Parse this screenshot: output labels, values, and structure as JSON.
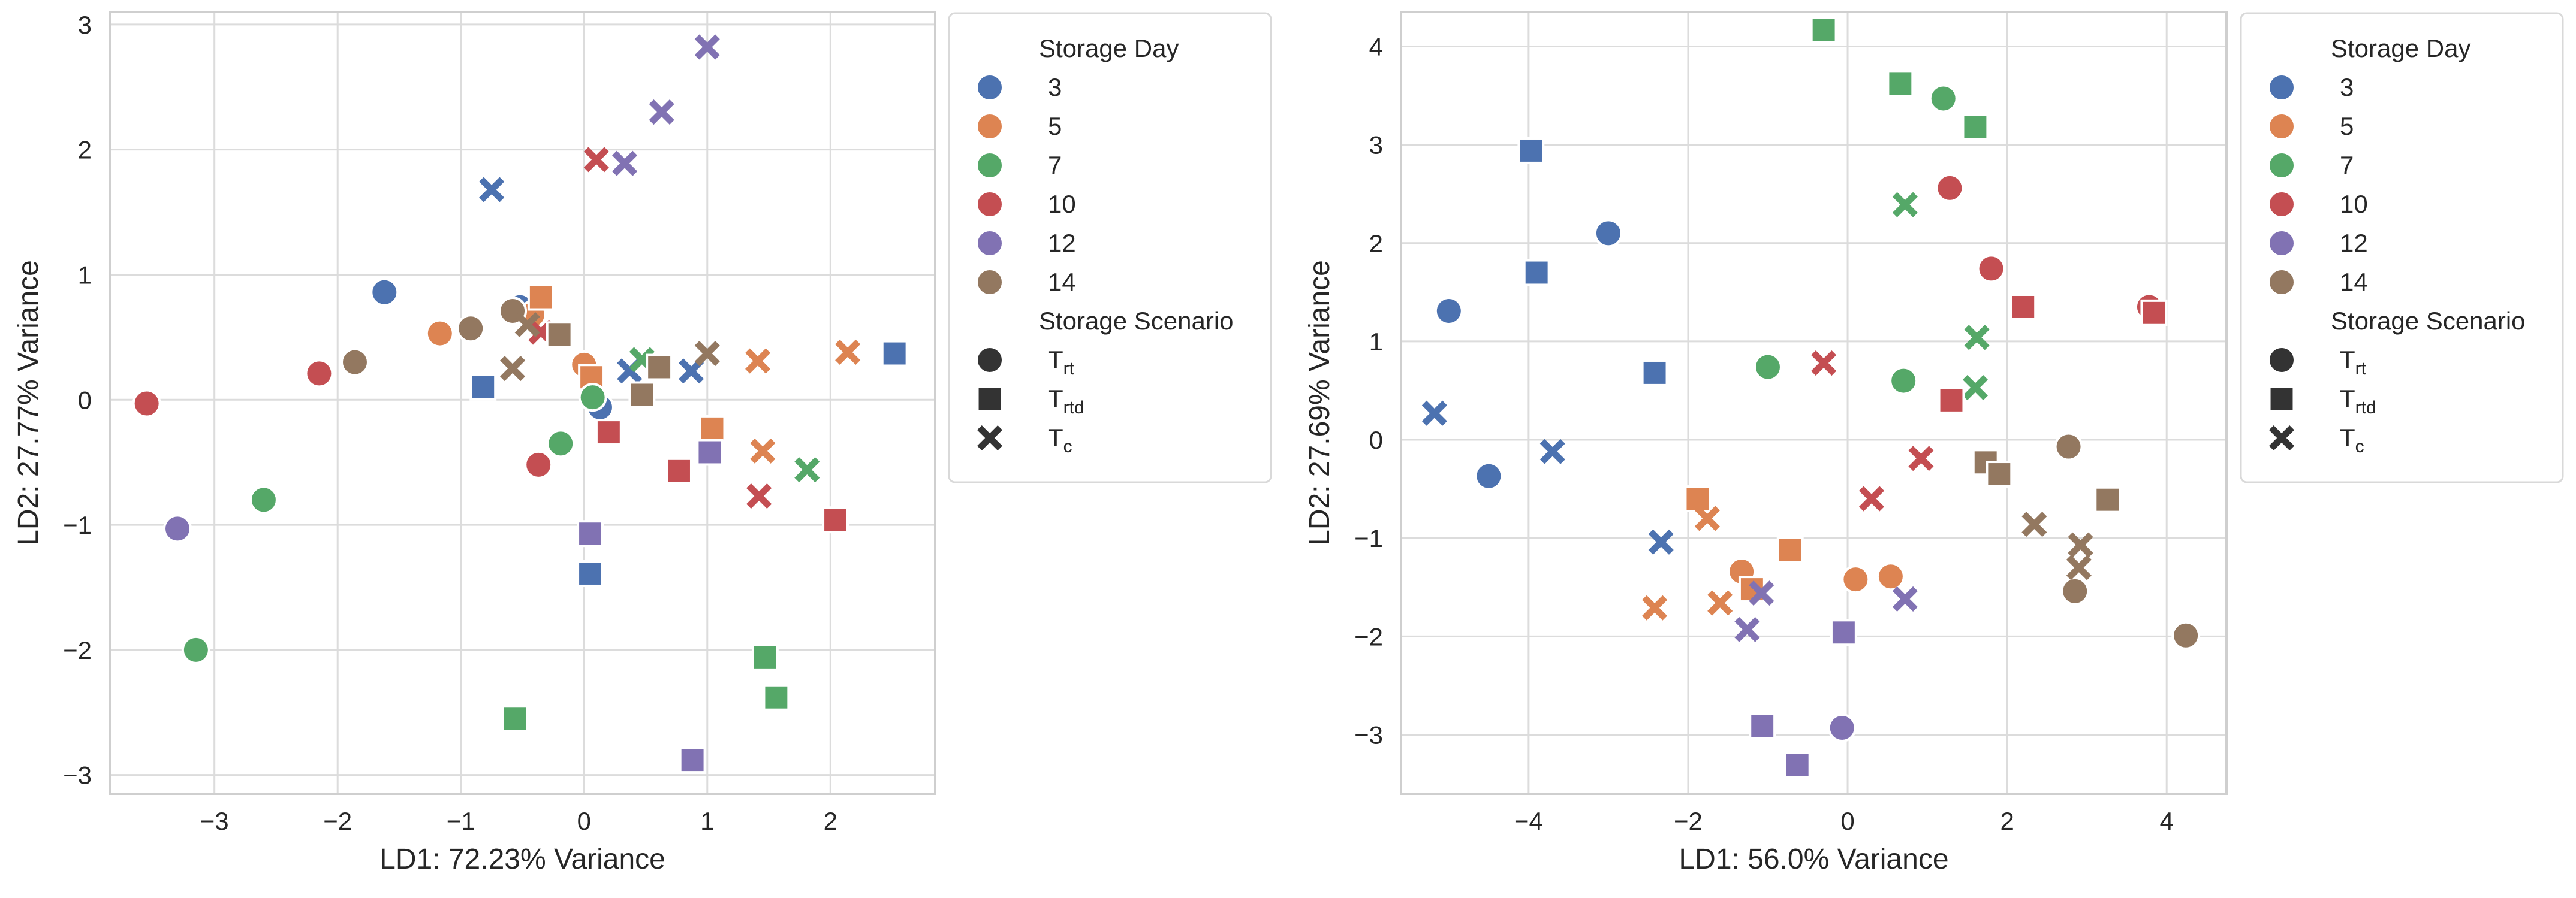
{
  "legend": {
    "hue_title": "Storage Day",
    "style_title": "Storage Scenario",
    "days": [
      "3",
      "5",
      "7",
      "10",
      "12",
      "14"
    ],
    "scenarios": [
      {
        "key": "circle",
        "main": "T",
        "sub": "rt"
      },
      {
        "key": "square",
        "main": "T",
        "sub": "rtd"
      },
      {
        "key": "x",
        "main": "T",
        "sub": "c"
      }
    ]
  },
  "colors": {
    "3": "#4c72b0",
    "5": "#dd8452",
    "7": "#55a868",
    "10": "#c44e52",
    "12": "#8172b3",
    "14": "#937860"
  },
  "chart_data": [
    {
      "type": "scatter",
      "title": "",
      "xlabel": "LD1: 72.23% Variance",
      "ylabel": "LD2: 27.77% Variance",
      "xlim": [
        -3.85,
        2.85
      ],
      "ylim": [
        -3.15,
        3.1
      ],
      "xticks": [
        -3,
        -2,
        -1,
        0,
        1,
        2
      ],
      "yticks": [
        -3,
        -2,
        -1,
        0,
        1,
        2,
        3
      ],
      "grid": true,
      "legend_position": "outside-right",
      "points": [
        {
          "day": "3",
          "scenario": "circle",
          "x": -1.62,
          "y": 0.86
        },
        {
          "day": "3",
          "scenario": "circle",
          "x": -0.52,
          "y": 0.74
        },
        {
          "day": "3",
          "scenario": "circle",
          "x": 0.13,
          "y": -0.06
        },
        {
          "day": "3",
          "scenario": "square",
          "x": -0.82,
          "y": 0.1
        },
        {
          "day": "3",
          "scenario": "square",
          "x": 0.05,
          "y": -1.39
        },
        {
          "day": "3",
          "scenario": "square",
          "x": 2.52,
          "y": 0.37
        },
        {
          "day": "3",
          "scenario": "x",
          "x": -0.75,
          "y": 1.68
        },
        {
          "day": "3",
          "scenario": "x",
          "x": 0.37,
          "y": 0.23
        },
        {
          "day": "3",
          "scenario": "x",
          "x": 0.87,
          "y": 0.23
        },
        {
          "day": "5",
          "scenario": "circle",
          "x": -1.17,
          "y": 0.53
        },
        {
          "day": "5",
          "scenario": "circle",
          "x": -0.42,
          "y": 0.68
        },
        {
          "day": "5",
          "scenario": "circle",
          "x": 0.0,
          "y": 0.28
        },
        {
          "day": "5",
          "scenario": "square",
          "x": -0.35,
          "y": 0.82
        },
        {
          "day": "5",
          "scenario": "square",
          "x": 0.06,
          "y": 0.18
        },
        {
          "day": "5",
          "scenario": "square",
          "x": 1.04,
          "y": -0.23
        },
        {
          "day": "5",
          "scenario": "x",
          "x": 1.41,
          "y": 0.31
        },
        {
          "day": "5",
          "scenario": "x",
          "x": 1.45,
          "y": -0.41
        },
        {
          "day": "5",
          "scenario": "x",
          "x": 2.14,
          "y": 0.38
        },
        {
          "day": "7",
          "scenario": "circle",
          "x": -2.6,
          "y": -0.8
        },
        {
          "day": "7",
          "scenario": "circle",
          "x": -3.15,
          "y": -2.0
        },
        {
          "day": "7",
          "scenario": "circle",
          "x": -0.19,
          "y": -0.35
        },
        {
          "day": "7",
          "scenario": "circle",
          "x": 0.07,
          "y": 0.02
        },
        {
          "day": "7",
          "scenario": "square",
          "x": -0.56,
          "y": -2.55
        },
        {
          "day": "7",
          "scenario": "square",
          "x": 1.47,
          "y": -2.06
        },
        {
          "day": "7",
          "scenario": "square",
          "x": 1.56,
          "y": -2.38
        },
        {
          "day": "7",
          "scenario": "x",
          "x": 0.47,
          "y": 0.32
        },
        {
          "day": "7",
          "scenario": "x",
          "x": 1.81,
          "y": -0.56
        },
        {
          "day": "10",
          "scenario": "circle",
          "x": -3.55,
          "y": -0.03
        },
        {
          "day": "10",
          "scenario": "circle",
          "x": -2.15,
          "y": 0.21
        },
        {
          "day": "10",
          "scenario": "circle",
          "x": -0.37,
          "y": -0.52
        },
        {
          "day": "10",
          "scenario": "square",
          "x": 0.2,
          "y": -0.26
        },
        {
          "day": "10",
          "scenario": "square",
          "x": 0.77,
          "y": -0.57
        },
        {
          "day": "10",
          "scenario": "square",
          "x": 2.04,
          "y": -0.96
        },
        {
          "day": "10",
          "scenario": "x",
          "x": -0.35,
          "y": 0.54
        },
        {
          "day": "10",
          "scenario": "x",
          "x": 0.1,
          "y": 1.92
        },
        {
          "day": "10",
          "scenario": "x",
          "x": 1.42,
          "y": -0.77
        },
        {
          "day": "12",
          "scenario": "circle",
          "x": -3.3,
          "y": -1.03
        },
        {
          "day": "12",
          "scenario": "square",
          "x": 0.05,
          "y": -1.07
        },
        {
          "day": "12",
          "scenario": "square",
          "x": 0.88,
          "y": -2.88
        },
        {
          "day": "12",
          "scenario": "square",
          "x": 1.02,
          "y": -0.42
        },
        {
          "day": "12",
          "scenario": "x",
          "x": 0.33,
          "y": 1.89
        },
        {
          "day": "12",
          "scenario": "x",
          "x": 0.63,
          "y": 2.3
        },
        {
          "day": "12",
          "scenario": "x",
          "x": 1.0,
          "y": 2.82
        },
        {
          "day": "14",
          "scenario": "circle",
          "x": -1.86,
          "y": 0.3
        },
        {
          "day": "14",
          "scenario": "circle",
          "x": -0.92,
          "y": 0.57
        },
        {
          "day": "14",
          "scenario": "circle",
          "x": -0.58,
          "y": 0.71
        },
        {
          "day": "14",
          "scenario": "square",
          "x": -0.2,
          "y": 0.52
        },
        {
          "day": "14",
          "scenario": "square",
          "x": 0.47,
          "y": 0.04
        },
        {
          "day": "14",
          "scenario": "square",
          "x": 0.61,
          "y": 0.26
        },
        {
          "day": "14",
          "scenario": "x",
          "x": -0.58,
          "y": 0.25
        },
        {
          "day": "14",
          "scenario": "x",
          "x": -0.46,
          "y": 0.6
        },
        {
          "day": "14",
          "scenario": "x",
          "x": 1.0,
          "y": 0.37
        }
      ]
    },
    {
      "type": "scatter",
      "title": "",
      "xlabel": "LD1: 56.0% Variance",
      "ylabel": "LD2: 27.69% Variance",
      "xlim": [
        -5.6,
        4.75
      ],
      "ylim": [
        -3.6,
        4.35
      ],
      "xticks": [
        -4,
        -2,
        0,
        2,
        4
      ],
      "yticks": [
        -3,
        -2,
        -1,
        0,
        1,
        2,
        3,
        4
      ],
      "grid": true,
      "legend_position": "outside-right",
      "points": [
        {
          "day": "3",
          "scenario": "circle",
          "x": -5.0,
          "y": 1.31
        },
        {
          "day": "3",
          "scenario": "circle",
          "x": -4.5,
          "y": -0.37
        },
        {
          "day": "3",
          "scenario": "circle",
          "x": -3.0,
          "y": 2.1
        },
        {
          "day": "3",
          "scenario": "square",
          "x": -3.97,
          "y": 2.94
        },
        {
          "day": "3",
          "scenario": "square",
          "x": -3.9,
          "y": 1.7
        },
        {
          "day": "3",
          "scenario": "square",
          "x": -2.42,
          "y": 0.68
        },
        {
          "day": "3",
          "scenario": "x",
          "x": -5.18,
          "y": 0.27
        },
        {
          "day": "3",
          "scenario": "x",
          "x": -3.7,
          "y": -0.12
        },
        {
          "day": "3",
          "scenario": "x",
          "x": -2.34,
          "y": -1.04
        },
        {
          "day": "5",
          "scenario": "circle",
          "x": -1.33,
          "y": -1.34
        },
        {
          "day": "5",
          "scenario": "circle",
          "x": 0.1,
          "y": -1.42
        },
        {
          "day": "5",
          "scenario": "circle",
          "x": 0.54,
          "y": -1.39
        },
        {
          "day": "5",
          "scenario": "square",
          "x": -1.88,
          "y": -0.6
        },
        {
          "day": "5",
          "scenario": "square",
          "x": -1.2,
          "y": -1.52
        },
        {
          "day": "5",
          "scenario": "square",
          "x": -0.72,
          "y": -1.12
        },
        {
          "day": "5",
          "scenario": "x",
          "x": -2.42,
          "y": -1.71
        },
        {
          "day": "5",
          "scenario": "x",
          "x": -1.76,
          "y": -0.8
        },
        {
          "day": "5",
          "scenario": "x",
          "x": -1.6,
          "y": -1.66
        },
        {
          "day": "7",
          "scenario": "circle",
          "x": -1.0,
          "y": 0.74
        },
        {
          "day": "7",
          "scenario": "circle",
          "x": 0.7,
          "y": 0.6
        },
        {
          "day": "7",
          "scenario": "circle",
          "x": 1.2,
          "y": 3.47
        },
        {
          "day": "7",
          "scenario": "square",
          "x": -0.3,
          "y": 4.17
        },
        {
          "day": "7",
          "scenario": "square",
          "x": 0.66,
          "y": 3.62
        },
        {
          "day": "7",
          "scenario": "square",
          "x": 1.6,
          "y": 3.18
        },
        {
          "day": "7",
          "scenario": "x",
          "x": 0.72,
          "y": 2.39
        },
        {
          "day": "7",
          "scenario": "x",
          "x": 1.62,
          "y": 1.04
        },
        {
          "day": "7",
          "scenario": "x",
          "x": 1.6,
          "y": 0.53
        },
        {
          "day": "10",
          "scenario": "circle",
          "x": 1.28,
          "y": 2.56
        },
        {
          "day": "10",
          "scenario": "circle",
          "x": 1.8,
          "y": 1.74
        },
        {
          "day": "10",
          "scenario": "circle",
          "x": 3.78,
          "y": 1.35
        },
        {
          "day": "10",
          "scenario": "square",
          "x": 1.3,
          "y": 0.4
        },
        {
          "day": "10",
          "scenario": "square",
          "x": 2.2,
          "y": 1.35
        },
        {
          "day": "10",
          "scenario": "square",
          "x": 3.84,
          "y": 1.29
        },
        {
          "day": "10",
          "scenario": "x",
          "x": -0.3,
          "y": 0.78
        },
        {
          "day": "10",
          "scenario": "x",
          "x": 0.3,
          "y": -0.6
        },
        {
          "day": "10",
          "scenario": "x",
          "x": 0.92,
          "y": -0.19
        },
        {
          "day": "12",
          "scenario": "circle",
          "x": -0.07,
          "y": -2.93
        },
        {
          "day": "12",
          "scenario": "square",
          "x": -1.07,
          "y": -2.91
        },
        {
          "day": "12",
          "scenario": "square",
          "x": -0.63,
          "y": -3.31
        },
        {
          "day": "12",
          "scenario": "square",
          "x": -0.05,
          "y": -1.96
        },
        {
          "day": "12",
          "scenario": "x",
          "x": -1.26,
          "y": -1.93
        },
        {
          "day": "12",
          "scenario": "x",
          "x": -1.08,
          "y": -1.56
        },
        {
          "day": "12",
          "scenario": "x",
          "x": 0.72,
          "y": -1.62
        },
        {
          "day": "14",
          "scenario": "circle",
          "x": 2.77,
          "y": -0.07
        },
        {
          "day": "14",
          "scenario": "circle",
          "x": 2.85,
          "y": -1.54
        },
        {
          "day": "14",
          "scenario": "circle",
          "x": 4.24,
          "y": -1.99
        },
        {
          "day": "14",
          "scenario": "square",
          "x": 1.73,
          "y": -0.23
        },
        {
          "day": "14",
          "scenario": "square",
          "x": 1.9,
          "y": -0.35
        },
        {
          "day": "14",
          "scenario": "square",
          "x": 3.26,
          "y": -0.61
        },
        {
          "day": "14",
          "scenario": "x",
          "x": 2.34,
          "y": -0.86
        },
        {
          "day": "14",
          "scenario": "x",
          "x": 2.92,
          "y": -1.07
        },
        {
          "day": "14",
          "scenario": "x",
          "x": 2.9,
          "y": -1.3
        }
      ]
    }
  ]
}
